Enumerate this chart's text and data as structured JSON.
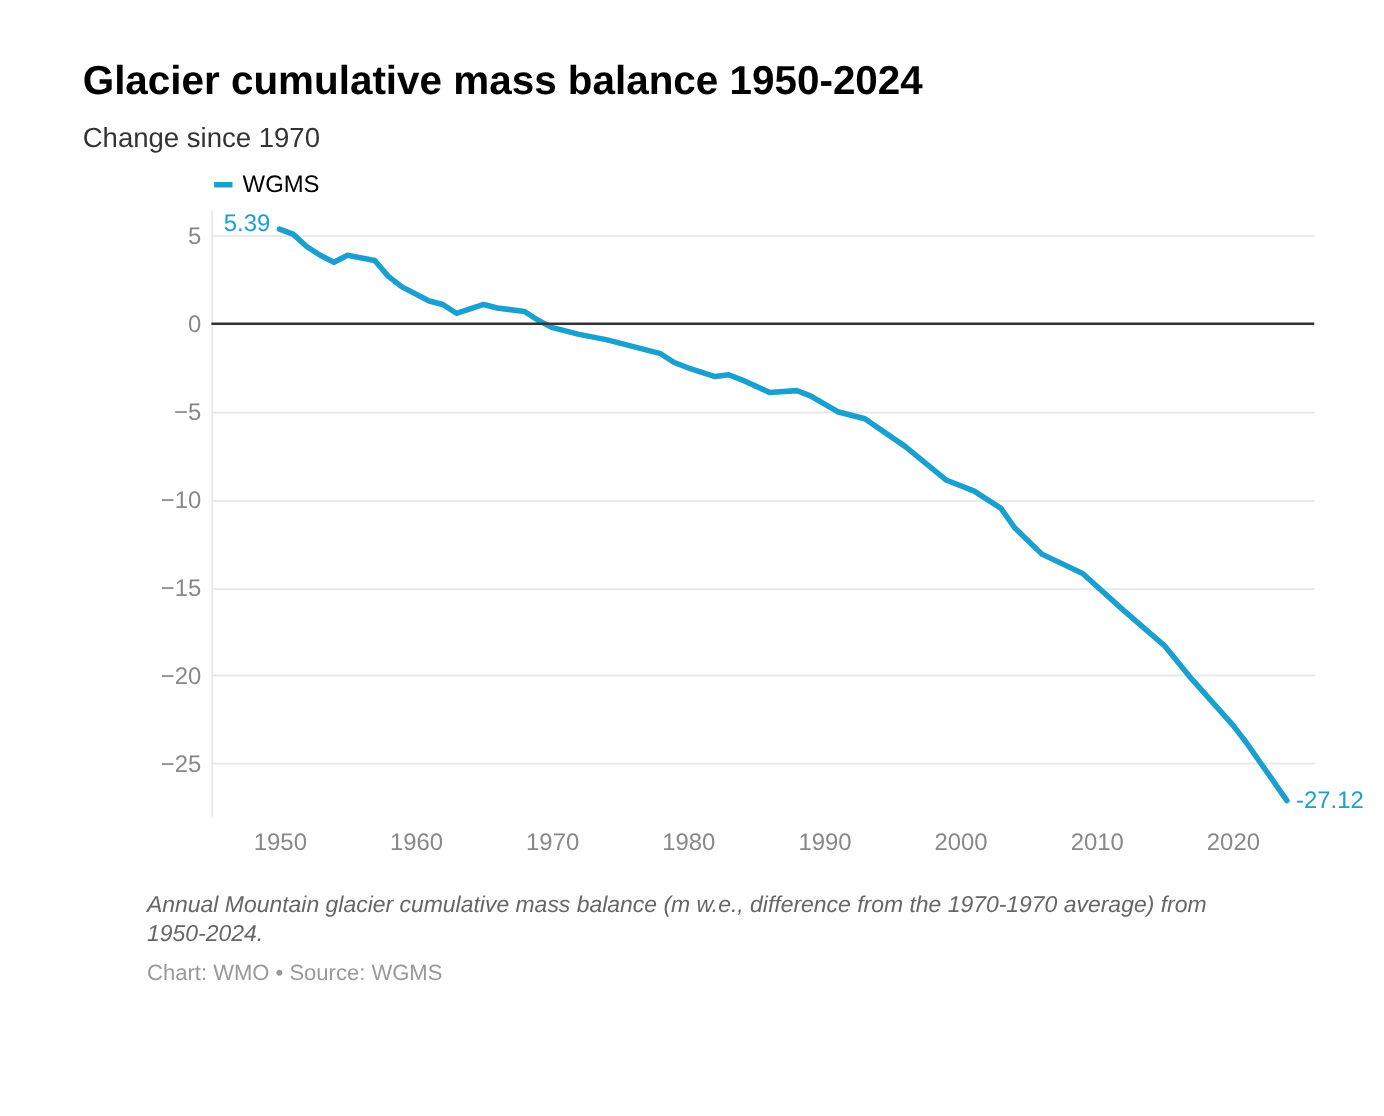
{
  "chart_data": {
    "type": "line",
    "title": "Glacier cumulative mass balance 1950-2024",
    "subtitle": "Change since 1970",
    "x": [
      1950,
      1951,
      1952,
      1953,
      1954,
      1955,
      1957,
      1958,
      1959,
      1961,
      1962,
      1963,
      1965,
      1966,
      1968,
      1969,
      1970,
      1972,
      1974,
      1976,
      1978,
      1979,
      1980,
      1982,
      1983,
      1984,
      1986,
      1988,
      1989,
      1991,
      1993,
      1996,
      1999,
      2001,
      2003,
      2004,
      2006,
      2009,
      2012,
      2015,
      2017,
      2020,
      2021,
      2024
    ],
    "series": [
      {
        "name": "WGMS",
        "color": "#1aa0d0",
        "values": [
          5.39,
          5.1,
          4.4,
          3.9,
          3.5,
          3.9,
          3.6,
          2.7,
          2.1,
          1.3,
          1.1,
          0.6,
          1.1,
          0.9,
          0.7,
          0.2,
          -0.2,
          -0.6,
          -0.9,
          -1.3,
          -1.7,
          -2.2,
          -2.5,
          -3.0,
          -2.9,
          -3.2,
          -3.9,
          -3.8,
          -4.1,
          -5.0,
          -5.4,
          -7.0,
          -8.9,
          -9.5,
          -10.5,
          -11.6,
          -13.1,
          -14.2,
          -16.3,
          -18.3,
          -20.2,
          -22.8,
          -23.8,
          -27.12
        ],
        "value_labels": [
          "5.39",
          null,
          null,
          null,
          null,
          null,
          null,
          null,
          null,
          null,
          null,
          null,
          null,
          null,
          null,
          null,
          null,
          null,
          null,
          null,
          null,
          null,
          null,
          null,
          null,
          null,
          null,
          null,
          null,
          null,
          null,
          null,
          null,
          null,
          null,
          null,
          null,
          null,
          null,
          null,
          null,
          null,
          null,
          "-27.12"
        ]
      }
    ],
    "xlim": [
      1945,
      2026
    ],
    "xticks": [
      1950,
      1960,
      1970,
      1980,
      1990,
      2000,
      2010,
      2020
    ],
    "ylim": [
      -28,
      6.5
    ],
    "yticks": [
      -25,
      -20,
      -15,
      -10,
      -5,
      0,
      5
    ],
    "grid": "y",
    "legend": "top left",
    "line_style": "solid",
    "ref_lines": [
      {
        "axis": "y",
        "value": 0,
        "color": "#333333"
      }
    ],
    "annotations": [
      "Annual Mountain glacier cumulative mass balance (m w.e., difference from the 1970-1970 average) from 1950-2024.",
      "Chart: WMO • Source: WGMS"
    ]
  }
}
